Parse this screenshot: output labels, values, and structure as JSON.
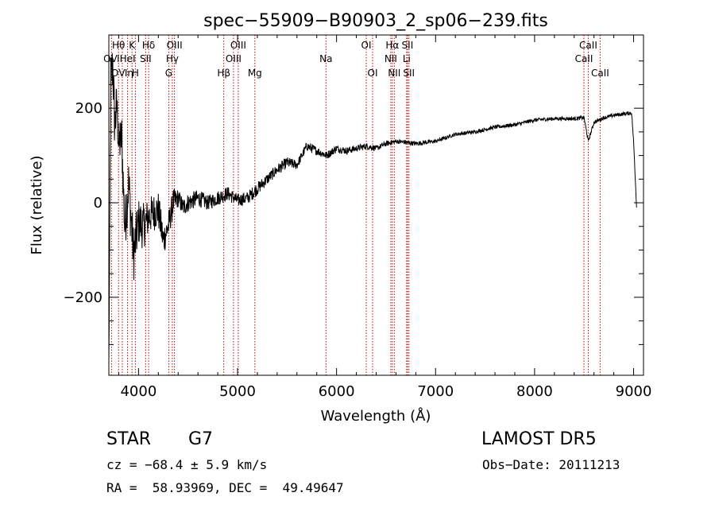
{
  "chart_data": {
    "type": "line",
    "title": "spec−55909−B90903_2_sp06−239.fits",
    "xlabel": "Wavelength (Å)",
    "ylabel": "Flux (relative)",
    "xlim": [
      3700,
      9100
    ],
    "ylim": [
      -365,
      355
    ],
    "xticks": [
      4000,
      5000,
      6000,
      7000,
      8000,
      9000
    ],
    "xtick_labels": [
      "4000",
      "5000",
      "6000",
      "7000",
      "8000",
      "9000"
    ],
    "yticks": [
      -200,
      0,
      200
    ],
    "ytick_labels": [
      "−200",
      "0",
      "200"
    ],
    "grid": false,
    "line_color": "#000000",
    "marker_color": "#c00000",
    "spectral_lines": [
      {
        "label": "OⅥ",
        "wavelength": 3727,
        "row": 1
      },
      {
        "label": "Hθ",
        "wavelength": 3798,
        "row": 0
      },
      {
        "label": "OⅥη",
        "wavelength": 3836,
        "row": 2
      },
      {
        "label": "K",
        "wavelength": 3934,
        "row": 0
      },
      {
        "label": "HeI",
        "wavelength": 3889,
        "row": 1
      },
      {
        "label": "H",
        "wavelength": 3968,
        "row": 2
      },
      {
        "label": "SII",
        "wavelength": 4072,
        "row": 1
      },
      {
        "label": "Hδ",
        "wavelength": 4102,
        "row": 0
      },
      {
        "label": "G",
        "wavelength": 4305,
        "row": 2
      },
      {
        "label": "Hγ",
        "wavelength": 4341,
        "row": 1
      },
      {
        "label": "OIII",
        "wavelength": 4363,
        "row": 0
      },
      {
        "label": "Hβ",
        "wavelength": 4861,
        "row": 2
      },
      {
        "label": "OIII",
        "wavelength": 4959,
        "row": 1
      },
      {
        "label": "OIII",
        "wavelength": 5007,
        "row": 0
      },
      {
        "label": "Mg",
        "wavelength": 5175,
        "row": 2
      },
      {
        "label": "Na",
        "wavelength": 5893,
        "row": 1
      },
      {
        "label": "OI",
        "wavelength": 6300,
        "row": 0
      },
      {
        "label": "OI",
        "wavelength": 6364,
        "row": 2
      },
      {
        "label": "NII",
        "wavelength": 6548,
        "row": 1
      },
      {
        "label": "Hα",
        "wavelength": 6563,
        "row": 0
      },
      {
        "label": "NII",
        "wavelength": 6583,
        "row": 2
      },
      {
        "label": "Li",
        "wavelength": 6708,
        "row": 1
      },
      {
        "label": "SII",
        "wavelength": 6716,
        "row": 0
      },
      {
        "label": "SII",
        "wavelength": 6731,
        "row": 2
      },
      {
        "label": "CaII",
        "wavelength": 8498,
        "row": 1
      },
      {
        "label": "CaII",
        "wavelength": 8542,
        "row": 0
      },
      {
        "label": "CaII",
        "wavelength": 8662,
        "row": 2
      }
    ],
    "series": [
      {
        "x": [
          3700,
          3720,
          3740,
          3760,
          3780,
          3800,
          3830,
          3860,
          3900,
          3950,
          4000,
          4050,
          4100,
          4150,
          4200,
          4250,
          4300,
          4350,
          4400,
          4450,
          4500,
          4600,
          4700,
          4800,
          4900,
          5000,
          5100,
          5200,
          5300,
          5400,
          5500,
          5600,
          5700,
          5750,
          5800,
          5900,
          6000,
          6100,
          6200,
          6300,
          6400,
          6500,
          6600,
          6700,
          6800,
          6900,
          7000,
          7200,
          7400,
          7600,
          7800,
          8000,
          8200,
          8400,
          8500,
          8542,
          8600,
          8700,
          8800,
          8900,
          8980,
          9000,
          9030
        ],
        "y": [
          -340,
          260,
          290,
          160,
          210,
          120,
          140,
          -50,
          40,
          -110,
          -40,
          -50,
          -30,
          -20,
          -15,
          -80,
          -50,
          0,
          10,
          -10,
          0,
          10,
          0,
          10,
          20,
          5,
          10,
          30,
          50,
          70,
          85,
          80,
          120,
          115,
          110,
          100,
          115,
          110,
          115,
          120,
          115,
          125,
          130,
          128,
          125,
          128,
          130,
          145,
          150,
          160,
          165,
          175,
          178,
          178,
          180,
          130,
          170,
          180,
          185,
          188,
          190,
          130,
          -10
        ],
        "noise": [
          0,
          60,
          60,
          60,
          50,
          50,
          50,
          60,
          60,
          60,
          50,
          50,
          40,
          40,
          40,
          35,
          30,
          30,
          20,
          20,
          20,
          18,
          16,
          16,
          15,
          14,
          14,
          14,
          12,
          12,
          12,
          10,
          10,
          10,
          9,
          9,
          8,
          8,
          7,
          7,
          6,
          6,
          5,
          5,
          5,
          5,
          4,
          4,
          4,
          4,
          4,
          4,
          4,
          4,
          4,
          4,
          4,
          4,
          4,
          4,
          4,
          3,
          3
        ]
      }
    ]
  },
  "info": {
    "class": "STAR",
    "subclass": "G7",
    "survey": "LAMOST DR5",
    "cz": "cz = −68.4 ± 5.9 km/s",
    "obs_date": "Obs−Date: 20111213",
    "coords": "RA =  58.93969, DEC =  49.49647"
  }
}
